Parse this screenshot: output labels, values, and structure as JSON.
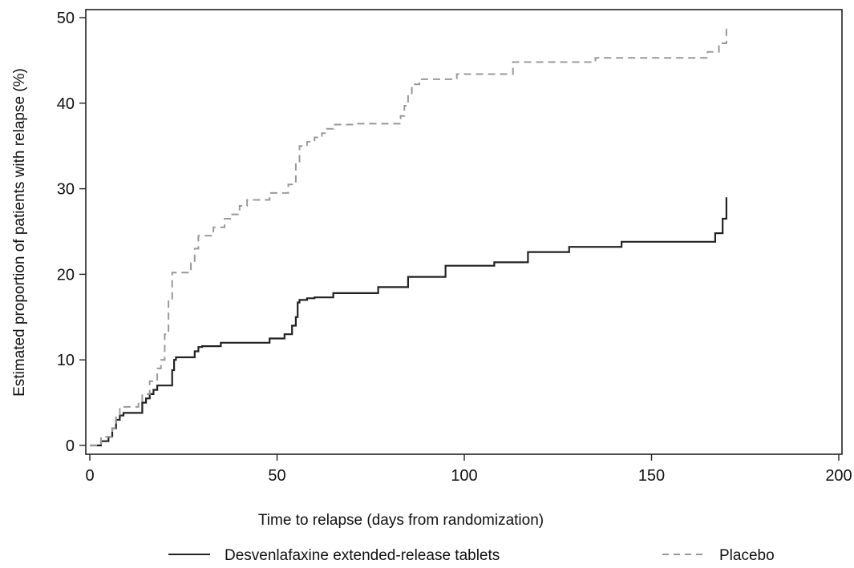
{
  "chart_data": {
    "type": "line",
    "step": true,
    "xlabel": "Time to relapse (days from randomization)",
    "ylabel": "Estimated proportion of patients with relapse (%)",
    "xlim": [
      0,
      200
    ],
    "ylim": [
      0,
      50
    ],
    "xticks": [
      0,
      50,
      100,
      150,
      200
    ],
    "yticks": [
      0,
      10,
      20,
      30,
      40,
      50
    ],
    "grid": false,
    "legend_position": "bottom",
    "series": [
      {
        "name": "Desvenlafaxine extended-release tablets",
        "color": "#222222",
        "dash": "solid",
        "x": [
          0,
          3,
          5,
          6,
          7,
          8,
          9,
          14,
          15,
          16,
          17,
          18,
          22,
          22.5,
          23,
          28,
          29,
          30,
          35,
          48,
          52,
          54,
          55,
          55.5,
          56,
          58,
          60,
          65,
          77,
          85,
          95,
          108,
          117,
          128,
          142,
          167,
          169,
          170
        ],
        "y": [
          0,
          0.5,
          1.0,
          2.0,
          3.0,
          3.5,
          3.8,
          5.0,
          5.5,
          6.0,
          6.5,
          7.0,
          8.8,
          10.0,
          10.3,
          11.0,
          11.5,
          11.6,
          12.0,
          12.5,
          13.0,
          14.0,
          15.0,
          16.7,
          17.0,
          17.2,
          17.3,
          17.8,
          18.5,
          19.7,
          21.0,
          21.4,
          22.6,
          23.2,
          23.8,
          24.8,
          26.5,
          29.0
        ]
      },
      {
        "name": "Placebo",
        "color": "#999999",
        "dash": "dashed",
        "x": [
          0,
          3,
          6,
          7,
          8,
          13,
          14,
          16,
          18,
          19,
          20,
          21,
          22,
          27,
          28,
          29,
          33,
          36,
          38,
          40,
          42,
          48,
          53,
          55,
          56,
          58,
          60,
          62,
          63,
          65,
          71,
          83,
          84,
          85,
          86,
          88,
          98,
          113,
          135,
          165,
          168,
          170
        ],
        "y": [
          0,
          1.0,
          2.0,
          3.5,
          4.5,
          5.0,
          6.0,
          7.5,
          9.0,
          10.0,
          13.0,
          17.0,
          20.2,
          21.3,
          23.0,
          24.5,
          25.5,
          26.5,
          27.0,
          28.0,
          28.7,
          29.5,
          30.5,
          33.0,
          35.0,
          35.5,
          36.0,
          36.5,
          37.0,
          37.5,
          37.6,
          38.5,
          39.7,
          41.0,
          42.2,
          42.8,
          43.4,
          44.8,
          45.3,
          46.0,
          47.0,
          49.0
        ]
      }
    ]
  }
}
